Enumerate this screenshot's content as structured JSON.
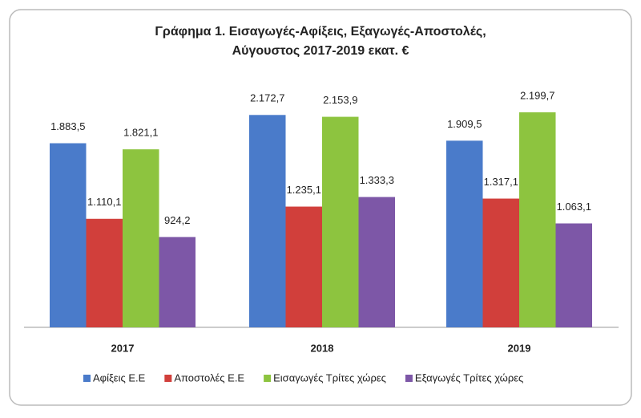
{
  "chart_data": {
    "type": "bar",
    "title": [
      "Γράφημα 1. Εισαγωγές-Αφίξεις, Εξαγωγές-Αποστολές,",
      "Αύγουστος 2017-2019 εκατ. €"
    ],
    "categories": [
      "2017",
      "2018",
      "2019"
    ],
    "series": [
      {
        "name": "Αφίξεις Ε.Ε",
        "color": "#4a7bca",
        "values": [
          1883.5,
          2172.7,
          1909.5
        ],
        "value_labels": [
          "1.883,5",
          "2.172,7",
          "1.909,5"
        ]
      },
      {
        "name": "Αποστολές  Ε.Ε",
        "color": "#d13f3b",
        "values": [
          1110.1,
          1235.1,
          1317.1
        ],
        "value_labels": [
          "1.110,1",
          "1.235,1",
          "1.317,1"
        ]
      },
      {
        "name": "Εισαγωγές Τρίτες χώρες",
        "color": "#8dc43f",
        "values": [
          1821.1,
          2153.9,
          2199.7
        ],
        "value_labels": [
          "1.821,1",
          "2.153,9",
          "2.199,7"
        ]
      },
      {
        "name": "Εξαγωγές Τρίτες χώρες",
        "color": "#7d57a7",
        "values": [
          924.2,
          1333.3,
          1063.1
        ],
        "value_labels": [
          "924,2",
          "1.333,3",
          "1.063,1"
        ]
      }
    ]
  }
}
